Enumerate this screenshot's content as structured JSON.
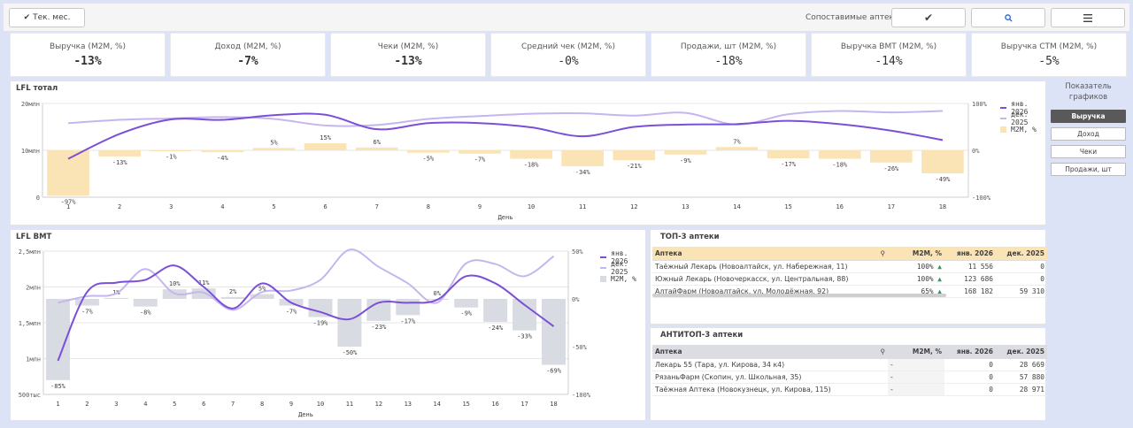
{
  "header": {
    "period_button": "Tек. мес.",
    "comparable_label": "Сопоставимые аптеки",
    "check_icon": "check-icon",
    "search_icon": "search-icon",
    "menu_icon": "menu-icon"
  },
  "kpis": [
    {
      "title": "Выручка (M2M, %)",
      "value": "-13%"
    },
    {
      "title": "Доход (M2M, %)",
      "value": "-7%"
    },
    {
      "title": "Чеки (M2M, %)",
      "value": "-13%"
    },
    {
      "title": "Средний чек (M2M, %)",
      "value": "-0%"
    },
    {
      "title": "Продажи, шт (M2M, %)",
      "value": "-18%"
    },
    {
      "title": "Выручка ВМТ (M2M, %)",
      "value": "-14%"
    },
    {
      "title": "Выручка СТМ (M2M, %)",
      "value": "-5%"
    }
  ],
  "sidebar": {
    "title": "Показатель графиков",
    "buttons": [
      "Выручка",
      "Доход",
      "Чеки",
      "Продажи, шт"
    ],
    "active": "Выручка"
  },
  "chart_total": {
    "title": "LFL тотал",
    "xlabel": "День",
    "legend": [
      "янв. 2026",
      "дек. 2025",
      "M2M, %"
    ]
  },
  "chart_vmt": {
    "title": "LFL ВМТ",
    "xlabel": "День",
    "legend": [
      "янв. 2026",
      "дек. 2025",
      "M2M, %"
    ]
  },
  "top3": {
    "title": "ТОП-3 аптеки",
    "columns": [
      "Аптека",
      "M2M, %",
      "янв. 2026",
      "дек. 2025"
    ],
    "rows": [
      [
        "Таёжный Лекарь (Новоалтайск, ул. Набережная, 11)",
        "100%",
        "11 556",
        "0"
      ],
      [
        "Южный Лекарь (Новочеркасск, ул. Центральная, 88)",
        "100%",
        "123 686",
        "0"
      ],
      [
        "АлтайФарм (Новоалтайск, ул. Молодёжная, 92)",
        "65%",
        "168 182",
        "59 310"
      ]
    ]
  },
  "antitop3": {
    "title": "АНТИТОП-3 аптеки",
    "columns": [
      "Аптека",
      "M2M, %",
      "янв. 2026",
      "дек. 2025"
    ],
    "rows": [
      [
        "Лекарь 55 (Тара, ул. Кирова, 34 к4)",
        "-",
        "0",
        "28 669"
      ],
      [
        "РязаньФарм (Скопин, ул. Школьная, 35)",
        "-",
        "0",
        "57 880"
      ],
      [
        "Таёжная Аптека (Новокузнецк, ул. Кирова, 115)",
        "-",
        "0",
        "28 971"
      ]
    ]
  },
  "colors": {
    "jan2026": "#7b4fd6",
    "dec2025": "#c4b6ee",
    "bar_total": "#fae3b4",
    "bar_vmt": "#d9dbe3",
    "green": "#2e9b5c"
  },
  "chart_data": [
    {
      "type": "bar+line",
      "title": "LFL тотал",
      "xlabel": "День",
      "x": [
        1,
        2,
        3,
        4,
        5,
        6,
        7,
        8,
        9,
        10,
        11,
        12,
        13,
        14,
        15,
        16,
        17,
        18
      ],
      "ylim": [
        0,
        20
      ],
      "y_ticks": [
        "0",
        "10млн",
        "20млн"
      ],
      "y2lim": [
        -100,
        100
      ],
      "y2_ticks": [
        "-100%",
        "0%",
        "100%"
      ],
      "series": [
        {
          "name": "янв. 2026",
          "values": [
            8.2,
            13.5,
            16.6,
            16.5,
            17.5,
            17.6,
            14.5,
            15.8,
            15.8,
            14.9,
            13.0,
            15.0,
            15.5,
            15.6,
            16.3,
            15.6,
            14.2,
            12.2
          ]
        },
        {
          "name": "дек. 2025",
          "values": [
            15.8,
            16.5,
            16.8,
            17.1,
            16.7,
            15.3,
            15.4,
            16.7,
            17.3,
            17.8,
            17.9,
            17.4,
            18.0,
            15.5,
            17.7,
            18.4,
            18.1,
            18.4
          ]
        },
        {
          "name": "M2M, %",
          "values": [
            -97,
            -13,
            -1,
            -4,
            5,
            15,
            6,
            -5,
            -7,
            -18,
            -34,
            -21,
            -9,
            7,
            -17,
            -18,
            -26,
            -49
          ]
        }
      ]
    },
    {
      "type": "bar+line",
      "title": "LFL ВМТ",
      "xlabel": "День",
      "x": [
        1,
        2,
        3,
        4,
        5,
        6,
        7,
        8,
        9,
        10,
        11,
        12,
        13,
        14,
        15,
        16,
        17,
        18
      ],
      "ylim": [
        0.5,
        2.5
      ],
      "y_ticks": [
        "500тыс",
        "1млн",
        "1,5млн",
        "2млн",
        "2,5млн"
      ],
      "y2lim": [
        -100,
        50
      ],
      "y2_ticks": [
        "-100%",
        "-50%",
        "0%",
        "50%"
      ],
      "series": [
        {
          "name": "янв. 2026",
          "values": [
            0.97,
            1.93,
            2.06,
            2.1,
            2.3,
            2.0,
            1.7,
            2.05,
            1.78,
            1.65,
            1.55,
            1.78,
            1.78,
            1.82,
            2.15,
            2.05,
            1.75,
            1.45
          ]
        },
        {
          "name": "дек. 2025",
          "values": [
            1.78,
            1.87,
            1.91,
            2.25,
            1.91,
            1.92,
            1.68,
            1.93,
            1.95,
            2.1,
            2.52,
            2.28,
            2.05,
            1.78,
            2.33,
            2.32,
            2.15,
            2.43
          ]
        },
        {
          "name": "M2M, %",
          "values": [
            -85,
            -7,
            1,
            -8,
            10,
            11,
            2,
            5,
            -7,
            -19,
            -50,
            -23,
            -17,
            0,
            -9,
            -24,
            -33,
            -69
          ]
        }
      ]
    }
  ]
}
